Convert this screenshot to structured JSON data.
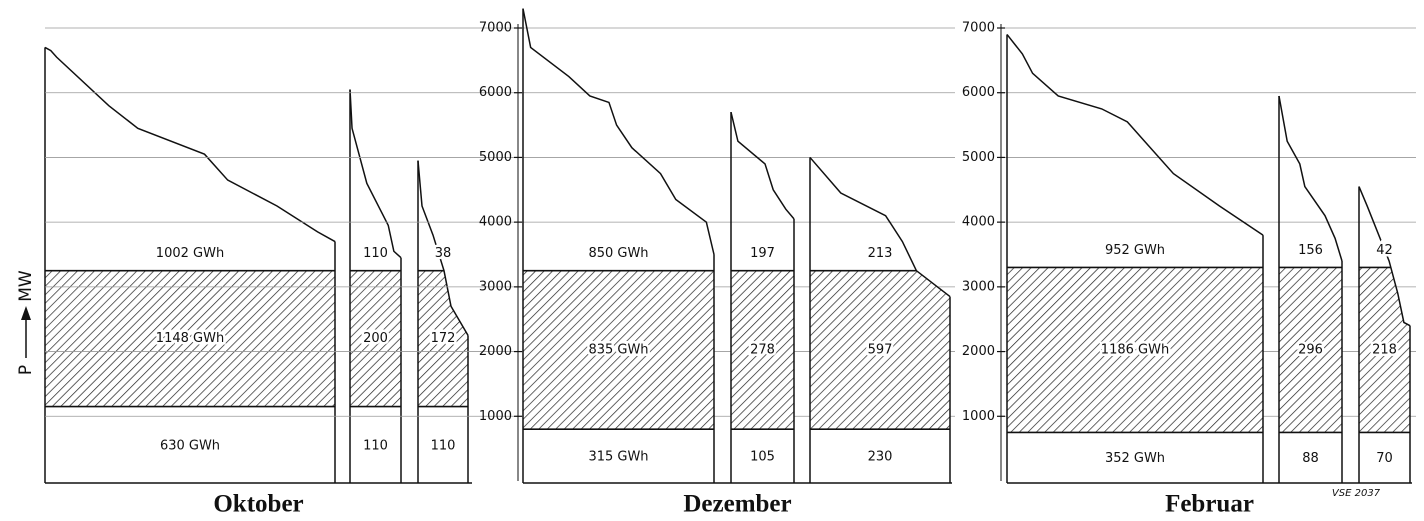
{
  "axis_label": {
    "symbol": "P",
    "unit": "MW"
  },
  "note": "VSE 2037",
  "chart_data": [
    {
      "type": "load-duration",
      "title": "Oktober",
      "ylim": [
        0,
        7000
      ],
      "blocks": [
        {
          "x": [
            0,
            2,
            4,
            22,
            32,
            55,
            63,
            80,
            94,
            100
          ],
          "values": [
            6700,
            6650,
            6550,
            5800,
            5450,
            5050,
            4650,
            4250,
            3850,
            3700
          ],
          "band_top": 3250,
          "base": 1150,
          "labels": [
            "1002 GWh",
            "1148 GWh",
            "630 GWh"
          ]
        },
        {
          "x": [
            0,
            4,
            33,
            75,
            86,
            100
          ],
          "values": [
            6050,
            5450,
            4600,
            3950,
            3550,
            3450
          ],
          "band_top": 3250,
          "base": 1150,
          "labels": [
            "110",
            "200",
            "110"
          ]
        },
        {
          "x": [
            0,
            8,
            30,
            52,
            66,
            100
          ],
          "values": [
            4950,
            4250,
            3800,
            3250,
            2700,
            2250
          ],
          "band_top": 3250,
          "base": 1150,
          "labels": [
            "38",
            "172",
            "110"
          ]
        }
      ]
    },
    {
      "type": "load-duration",
      "title": "Dezember",
      "ylim": [
        0,
        7000
      ],
      "yticks": [
        1000,
        2000,
        3000,
        4000,
        5000,
        6000,
        7000
      ],
      "blocks": [
        {
          "x": [
            0,
            4,
            24,
            35,
            45,
            49,
            57,
            72,
            80,
            96,
            100
          ],
          "values": [
            7300,
            6700,
            6250,
            5950,
            5850,
            5500,
            5150,
            4750,
            4350,
            4000,
            3500
          ],
          "band_top": 3250,
          "base": 800,
          "labels": [
            "850 GWh",
            "835 GWh",
            "315 GWh"
          ]
        },
        {
          "x": [
            0,
            11,
            54,
            67,
            87,
            100
          ],
          "values": [
            5700,
            5250,
            4900,
            4500,
            4200,
            4050
          ],
          "band_top": 3250,
          "base": 800,
          "labels": [
            "197",
            "278",
            "105"
          ]
        },
        {
          "x": [
            0,
            22,
            54,
            66,
            76,
            100
          ],
          "values": [
            5000,
            4450,
            4100,
            3700,
            3250,
            2850
          ],
          "band_top": 3250,
          "base": 800,
          "labels": [
            "213",
            "597",
            "230"
          ]
        }
      ]
    },
    {
      "type": "load-duration",
      "title": "Februar",
      "ylim": [
        0,
        7000
      ],
      "yticks": [
        1000,
        2000,
        3000,
        4000,
        5000,
        6000,
        7000
      ],
      "blocks": [
        {
          "x": [
            0,
            6,
            10,
            20,
            37,
            47,
            65,
            83,
            100
          ],
          "values": [
            6900,
            6600,
            6300,
            5950,
            5750,
            5550,
            4750,
            4250,
            3800
          ],
          "band_top": 3300,
          "base": 750,
          "labels": [
            "952 GWh",
            "1186 GWh",
            "352 GWh"
          ]
        },
        {
          "x": [
            0,
            13,
            33,
            41,
            73,
            89,
            100
          ],
          "values": [
            5950,
            5250,
            4900,
            4550,
            4100,
            3750,
            3400
          ],
          "band_top": 3300,
          "base": 750,
          "labels": [
            "156",
            "296",
            "88"
          ]
        },
        {
          "x": [
            0,
            16,
            59,
            76,
            88,
            100
          ],
          "values": [
            4550,
            4250,
            3400,
            2900,
            2450,
            2400
          ],
          "band_top": 3300,
          "base": 750,
          "labels": [
            "42",
            "218",
            "70"
          ]
        }
      ]
    }
  ]
}
